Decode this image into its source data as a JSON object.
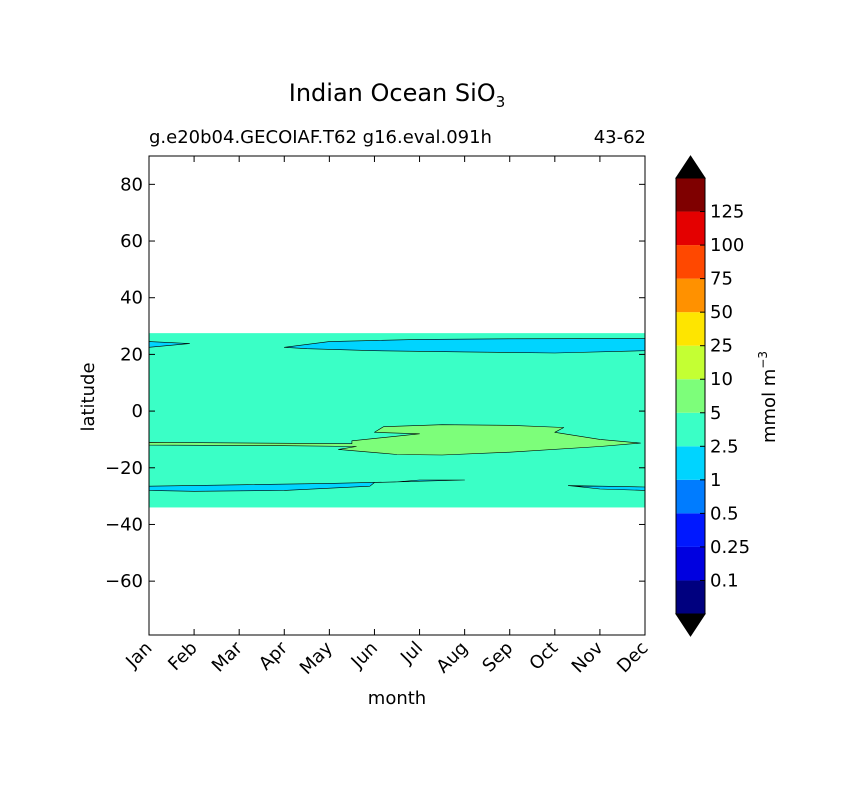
{
  "chart_data": {
    "type": "contourf",
    "title": "Indian Ocean SiO",
    "title_subscript": "3",
    "subtitle_left": "g.e20b04.GECOIAF.T62 g16.eval.091h",
    "subtitle_right": "43-62",
    "xlabel": "month",
    "ylabel": "latitude",
    "x_categories": [
      "Jan",
      "Feb",
      "Mar",
      "Apr",
      "May",
      "Jun",
      "Jul",
      "Aug",
      "Sep",
      "Oct",
      "Nov",
      "Dec"
    ],
    "x_range": [
      1,
      12
    ],
    "ylim": [
      -79,
      90
    ],
    "y_ticks": [
      80,
      60,
      40,
      20,
      0,
      -20,
      -40,
      -60
    ],
    "y_tick_labels": [
      "80",
      "60",
      "40",
      "20",
      "0",
      "−20",
      "−40",
      "−60"
    ],
    "data_extent": {
      "lat_min": -34,
      "lat_max": 27.5
    },
    "background_level": "2.5-5",
    "features": [
      {
        "level": "1-2.5",
        "label": "northern band (Apr-Dec)",
        "color": "#00d4ff",
        "outline": [
          [
            4.0,
            22.5
          ],
          [
            5.0,
            24.5
          ],
          [
            7.0,
            25.3
          ],
          [
            9.0,
            25.5
          ],
          [
            12.0,
            25.6
          ],
          [
            12.0,
            21.3
          ],
          [
            10.0,
            20.5
          ],
          [
            8.0,
            20.9
          ],
          [
            6.0,
            21.3
          ],
          [
            4.5,
            22.0
          ]
        ]
      },
      {
        "level": "1-2.5",
        "label": "northern band (Jan)",
        "color": "#00d4ff",
        "outline": [
          [
            1.0,
            24.5
          ],
          [
            1.9,
            23.8
          ],
          [
            1.0,
            22.5
          ]
        ]
      },
      {
        "level": "5-10",
        "label": "equatorial patch",
        "color": "#7dfe7a",
        "outline": [
          [
            1.0,
            -11.0
          ],
          [
            5.5,
            -11.5
          ],
          [
            5.5,
            -10.5
          ],
          [
            7.0,
            -8.0
          ],
          [
            6.0,
            -7.5
          ],
          [
            6.2,
            -5.5
          ],
          [
            7.5,
            -4.8
          ],
          [
            9.0,
            -5.0
          ],
          [
            10.2,
            -5.8
          ],
          [
            10.0,
            -7.5
          ],
          [
            11.0,
            -10.0
          ],
          [
            11.9,
            -11.3
          ],
          [
            11.0,
            -12.5
          ],
          [
            9.0,
            -14.5
          ],
          [
            7.5,
            -15.5
          ],
          [
            6.5,
            -15.3
          ],
          [
            5.2,
            -13.5
          ],
          [
            5.6,
            -12.5
          ],
          [
            4.0,
            -12.2
          ],
          [
            1.0,
            -12.0
          ]
        ]
      },
      {
        "level": "1-2.5",
        "label": "southern band (Jan-Jul)",
        "color": "#00d4ff",
        "outline": [
          [
            1.0,
            -26.5
          ],
          [
            3.0,
            -26.0
          ],
          [
            5.0,
            -25.5
          ],
          [
            6.5,
            -25.0
          ],
          [
            7.0,
            -24.3
          ],
          [
            8.0,
            -24.3
          ],
          [
            6.0,
            -25.2
          ],
          [
            5.9,
            -26.5
          ],
          [
            4.0,
            -28.0
          ],
          [
            2.0,
            -28.3
          ],
          [
            1.0,
            -28.0
          ]
        ]
      },
      {
        "level": "1-2.5",
        "label": "southern band (Oct-Dec)",
        "color": "#00d4ff",
        "outline": [
          [
            10.3,
            -26.3
          ],
          [
            12.0,
            -26.8
          ],
          [
            12.0,
            -28.0
          ],
          [
            11.0,
            -27.5
          ]
        ]
      }
    ],
    "colorbar": {
      "label": "mmol m",
      "label_superscript": "−3",
      "extend": "both",
      "colors": [
        "#00007f",
        "#0000e0",
        "#0018ff",
        "#007cff",
        "#00d4ff",
        "#3affc6",
        "#7dfe7a",
        "#c4ff33",
        "#fee500",
        "#ff9100",
        "#ff4800",
        "#e40000",
        "#7f0000"
      ],
      "under_color": "#000000",
      "over_color": "#000000",
      "tick_labels": [
        "0.1",
        "0.25",
        "0.5",
        "1",
        "2.5",
        "5",
        "10",
        "25",
        "50",
        "75",
        "100",
        "125"
      ]
    },
    "background_color": "#3affc6",
    "contour_line_color": "#000000"
  }
}
